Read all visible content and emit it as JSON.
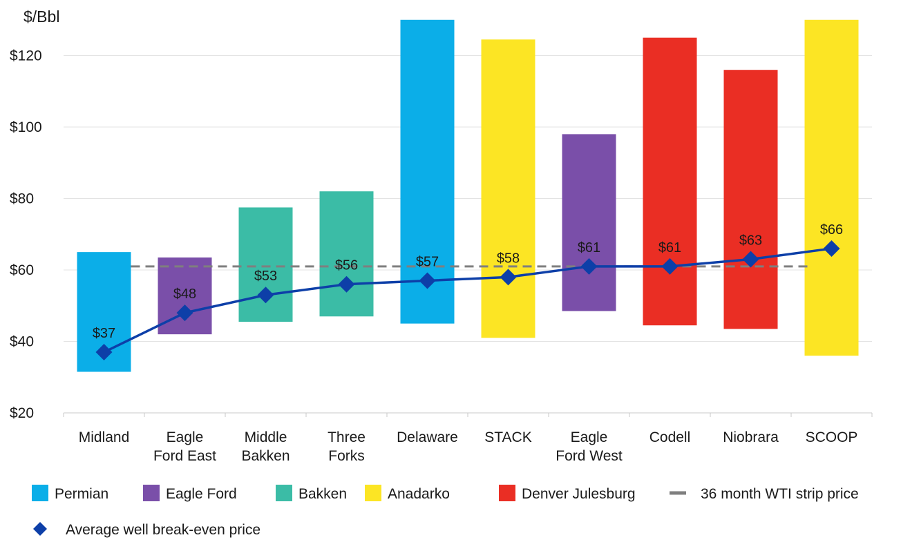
{
  "chart_data": {
    "type": "bar",
    "subtype": "floating-range-bar-with-line",
    "title": "",
    "ylabel": "$/Bbl",
    "xlabel": "",
    "ylim": [
      20,
      130
    ],
    "yticks": [
      20,
      40,
      60,
      80,
      100,
      120
    ],
    "ytick_labels": [
      "$20",
      "$40",
      "$60",
      "$80",
      "$100",
      "$120"
    ],
    "grid": true,
    "legend_position": "bottom",
    "categories": [
      [
        "Midland"
      ],
      [
        "Eagle",
        "Ford East"
      ],
      [
        "Middle",
        "Bakken"
      ],
      [
        "Three",
        "Forks"
      ],
      [
        "Delaware"
      ],
      [
        "STACK"
      ],
      [
        "Eagle",
        "Ford West"
      ],
      [
        "Codell"
      ],
      [
        "Niobrara"
      ],
      [
        "SCOOP"
      ]
    ],
    "range_bars": [
      {
        "low": 31.5,
        "high": 65,
        "basin": "Permian"
      },
      {
        "low": 42,
        "high": 63.5,
        "basin": "Eagle Ford"
      },
      {
        "low": 45.5,
        "high": 77.5,
        "basin": "Bakken"
      },
      {
        "low": 47,
        "high": 82,
        "basin": "Bakken"
      },
      {
        "low": 45,
        "high": 130,
        "basin": "Permian"
      },
      {
        "low": 41,
        "high": 124.5,
        "basin": "Anadarko"
      },
      {
        "low": 48.5,
        "high": 98,
        "basin": "Eagle Ford"
      },
      {
        "low": 44.5,
        "high": 125,
        "basin": "Denver Julesburg"
      },
      {
        "low": 43.5,
        "high": 116,
        "basin": "Denver Julesburg"
      },
      {
        "low": 36,
        "high": 130,
        "basin": "Anadarko"
      }
    ],
    "series": [
      {
        "name": "Average well break-even price",
        "type": "line-marker",
        "color": "#0d3fa8",
        "values": [
          37,
          48,
          53,
          56,
          57,
          58,
          61,
          61,
          63,
          66
        ],
        "labels": [
          "$37",
          "$48",
          "$53",
          "$56",
          "$57",
          "$58",
          "$61",
          "$61",
          "$63",
          "$66"
        ]
      }
    ],
    "reference_line": {
      "name": "36 month WTI strip price",
      "value": 61,
      "style": "dashed",
      "color": "#7f7f7f"
    },
    "basins": [
      {
        "name": "Permian",
        "color": "#0baee8"
      },
      {
        "name": "Eagle Ford",
        "color": "#7a4fa9"
      },
      {
        "name": "Bakken",
        "color": "#3bbca6"
      },
      {
        "name": "Anadarko",
        "color": "#fce524"
      },
      {
        "name": "Denver Julesburg",
        "color": "#ea2e24"
      }
    ],
    "legend": [
      {
        "label": "Permian",
        "kind": "swatch",
        "color": "#0baee8"
      },
      {
        "label": "Eagle Ford",
        "kind": "swatch",
        "color": "#7a4fa9"
      },
      {
        "label": "Bakken",
        "kind": "swatch",
        "color": "#3bbca6"
      },
      {
        "label": "Anadarko",
        "kind": "swatch",
        "color": "#fce524"
      },
      {
        "label": "Denver Julesburg",
        "kind": "swatch",
        "color": "#ea2e24"
      },
      {
        "label": "36 month WTI strip price",
        "kind": "dash",
        "color": "#7f7f7f"
      },
      {
        "label": "Average well break-even price",
        "kind": "diamond",
        "color": "#0d3fa8"
      }
    ]
  }
}
